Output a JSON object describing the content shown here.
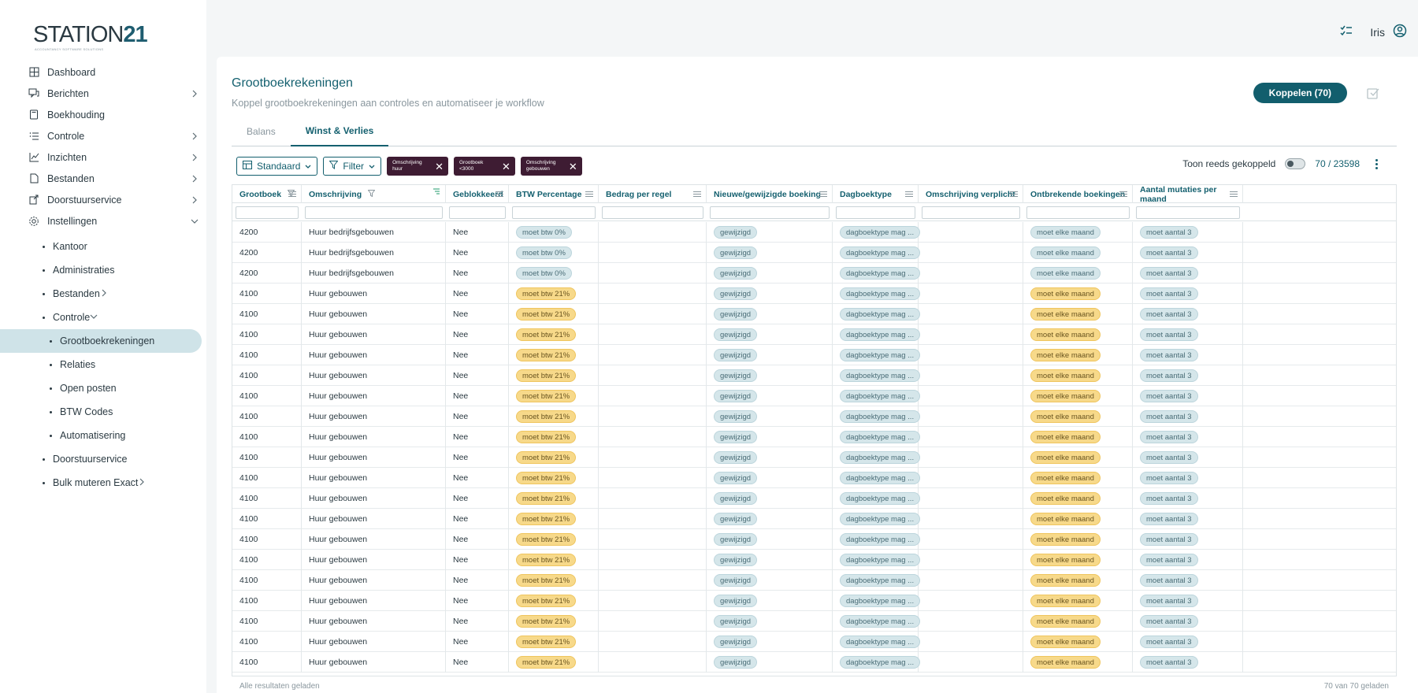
{
  "brand": {
    "name_a": "STATION",
    "name_b": "21",
    "tagline": "ACCOUNTANCY SOFTWARE SOLUTIONS"
  },
  "topbar": {
    "user": "Iris"
  },
  "nav": {
    "items": [
      {
        "label": "Dashboard",
        "icon": "grid-icon",
        "chev": false
      },
      {
        "label": "Berichten",
        "icon": "chat-icon",
        "chev": "right"
      },
      {
        "label": "Boekhouding",
        "icon": "book-icon",
        "chev": false
      },
      {
        "label": "Controle",
        "icon": "checklist-icon",
        "chev": "right"
      },
      {
        "label": "Inzichten",
        "icon": "chart-icon",
        "chev": "right"
      },
      {
        "label": "Bestanden",
        "icon": "file-icon",
        "chev": "right"
      },
      {
        "label": "Doorstuurservice",
        "icon": "forward-icon",
        "chev": "right"
      },
      {
        "label": "Instellingen",
        "icon": "gear-icon",
        "chev": "down"
      }
    ],
    "settings_sub": [
      {
        "label": "Kantoor",
        "chev": false
      },
      {
        "label": "Administraties",
        "chev": false
      },
      {
        "label": "Bestanden",
        "chev": "right"
      },
      {
        "label": "Controle",
        "chev": "down"
      }
    ],
    "controle_sub": [
      {
        "label": "Grootboekrekeningen",
        "active": true
      },
      {
        "label": "Relaties"
      },
      {
        "label": "Open posten"
      },
      {
        "label": "BTW Codes"
      },
      {
        "label": "Automatisering"
      }
    ],
    "settings_sub_after": [
      {
        "label": "Doorstuurservice",
        "chev": false
      },
      {
        "label": "Bulk muteren Exact",
        "chev": "right"
      }
    ]
  },
  "page": {
    "title": "Grootboekrekeningen",
    "subtitle": "Koppel grootboekrekeningen aan controles en automatiseer je workflow",
    "koppel_button": "Koppelen (70)",
    "tabs": [
      {
        "label": "Balans",
        "active": false
      },
      {
        "label": "Winst & Verlies",
        "active": true
      }
    ]
  },
  "toolbar": {
    "view_label": "Standaard",
    "filter_label": "Filter",
    "chips": [
      {
        "line1": "Omschrijving",
        "line2": "huur"
      },
      {
        "line1": "Grootboek",
        "line2": "<3000"
      },
      {
        "line1": "Omschrijving",
        "line2": "gebouwen"
      }
    ],
    "toggle_label": "Toon reeds gekoppeld",
    "toggle_on": false,
    "count": "70 / 23598"
  },
  "grid": {
    "columns": [
      "Grootboek",
      "Omschrijving",
      "Geblokkeerd",
      "BTW Percentage",
      "Bedrag per regel",
      "Nieuwe/gewijzigde boeking",
      "Dagboektype",
      "Omschrijving verplicht",
      "Ontbrekende boekingen",
      "Aantal mutaties per maand"
    ],
    "rows": [
      [
        "4200",
        "Huur bedrijfsgebouwen",
        "Nee",
        "moet btw 0%",
        "",
        "gewijzigd",
        "dagboektype mag ...",
        "",
        "moet elke maand",
        "moet aantal 3"
      ],
      [
        "4200",
        "Huur bedrijfsgebouwen",
        "Nee",
        "moet btw 0%",
        "",
        "gewijzigd",
        "dagboektype mag ...",
        "",
        "moet elke maand",
        "moet aantal 3"
      ],
      [
        "4200",
        "Huur bedrijfsgebouwen",
        "Nee",
        "moet btw 0%",
        "",
        "gewijzigd",
        "dagboektype mag ...",
        "",
        "moet elke maand",
        "moet aantal 3"
      ],
      [
        "4100",
        "Huur gebouwen",
        "Nee",
        "moet btw 21%",
        "",
        "gewijzigd",
        "dagboektype mag ...",
        "",
        "moet elke maand",
        "moet aantal 3"
      ],
      [
        "4100",
        "Huur gebouwen",
        "Nee",
        "moet btw 21%",
        "",
        "gewijzigd",
        "dagboektype mag ...",
        "",
        "moet elke maand",
        "moet aantal 3"
      ],
      [
        "4100",
        "Huur gebouwen",
        "Nee",
        "moet btw 21%",
        "",
        "gewijzigd",
        "dagboektype mag ...",
        "",
        "moet elke maand",
        "moet aantal 3"
      ],
      [
        "4100",
        "Huur gebouwen",
        "Nee",
        "moet btw 21%",
        "",
        "gewijzigd",
        "dagboektype mag ...",
        "",
        "moet elke maand",
        "moet aantal 3"
      ],
      [
        "4100",
        "Huur gebouwen",
        "Nee",
        "moet btw 21%",
        "",
        "gewijzigd",
        "dagboektype mag ...",
        "",
        "moet elke maand",
        "moet aantal 3"
      ],
      [
        "4100",
        "Huur gebouwen",
        "Nee",
        "moet btw 21%",
        "",
        "gewijzigd",
        "dagboektype mag ...",
        "",
        "moet elke maand",
        "moet aantal 3"
      ],
      [
        "4100",
        "Huur gebouwen",
        "Nee",
        "moet btw 21%",
        "",
        "gewijzigd",
        "dagboektype mag ...",
        "",
        "moet elke maand",
        "moet aantal 3"
      ],
      [
        "4100",
        "Huur gebouwen",
        "Nee",
        "moet btw 21%",
        "",
        "gewijzigd",
        "dagboektype mag ...",
        "",
        "moet elke maand",
        "moet aantal 3"
      ],
      [
        "4100",
        "Huur gebouwen",
        "Nee",
        "moet btw 21%",
        "",
        "gewijzigd",
        "dagboektype mag ...",
        "",
        "moet elke maand",
        "moet aantal 3"
      ],
      [
        "4100",
        "Huur gebouwen",
        "Nee",
        "moet btw 21%",
        "",
        "gewijzigd",
        "dagboektype mag ...",
        "",
        "moet elke maand",
        "moet aantal 3"
      ],
      [
        "4100",
        "Huur gebouwen",
        "Nee",
        "moet btw 21%",
        "",
        "gewijzigd",
        "dagboektype mag ...",
        "",
        "moet elke maand",
        "moet aantal 3"
      ],
      [
        "4100",
        "Huur gebouwen",
        "Nee",
        "moet btw 21%",
        "",
        "gewijzigd",
        "dagboektype mag ...",
        "",
        "moet elke maand",
        "moet aantal 3"
      ],
      [
        "4100",
        "Huur gebouwen",
        "Nee",
        "moet btw 21%",
        "",
        "gewijzigd",
        "dagboektype mag ...",
        "",
        "moet elke maand",
        "moet aantal 3"
      ],
      [
        "4100",
        "Huur gebouwen",
        "Nee",
        "moet btw 21%",
        "",
        "gewijzigd",
        "dagboektype mag ...",
        "",
        "moet elke maand",
        "moet aantal 3"
      ],
      [
        "4100",
        "Huur gebouwen",
        "Nee",
        "moet btw 21%",
        "",
        "gewijzigd",
        "dagboektype mag ...",
        "",
        "moet elke maand",
        "moet aantal 3"
      ],
      [
        "4100",
        "Huur gebouwen",
        "Nee",
        "moet btw 21%",
        "",
        "gewijzigd",
        "dagboektype mag ...",
        "",
        "moet elke maand",
        "moet aantal 3"
      ],
      [
        "4100",
        "Huur gebouwen",
        "Nee",
        "moet btw 21%",
        "",
        "gewijzigd",
        "dagboektype mag ...",
        "",
        "moet elke maand",
        "moet aantal 3"
      ],
      [
        "4100",
        "Huur gebouwen",
        "Nee",
        "moet btw 21%",
        "",
        "gewijzigd",
        "dagboektype mag ...",
        "",
        "moet elke maand",
        "moet aantal 3"
      ],
      [
        "4100",
        "Huur gebouwen",
        "Nee",
        "moet btw 21%",
        "",
        "gewijzigd",
        "dagboektype mag ...",
        "",
        "moet elke maand",
        "moet aantal 3"
      ]
    ],
    "footer_left": "Alle resultaten geladen",
    "footer_right": "70 van 70 geladen"
  },
  "colors": {
    "accent": "#125e6d",
    "chip_bg": "#3e1c33",
    "badge_blue": "#d5e6ea",
    "badge_yellow": "#f7d98a",
    "active_nav": "#cfe3e8"
  }
}
